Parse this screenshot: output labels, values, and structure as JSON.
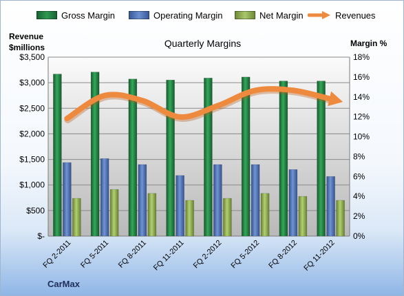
{
  "chart_data": {
    "type": "bar",
    "title": "Quarterly Margins",
    "ylabel_left": "Revenue $millions",
    "ylabel_right": "Margin %",
    "categories": [
      "FQ 2-2011",
      "FQ 5-2011",
      "FQ 8-2011",
      "FQ 11-2011",
      "FQ 2-2012",
      "FQ 5-2012",
      "FQ 8-2012",
      "FQ 11-2012"
    ],
    "left_axis": {
      "ylim": [
        0,
        3500
      ],
      "ticks": [
        0,
        500,
        1000,
        1500,
        2000,
        2500,
        3000,
        3500
      ],
      "tick_labels": [
        "$-",
        "$500",
        "$1,000",
        "$1,500",
        "$2,000",
        "$2,500",
        "$3,000",
        "$3,500"
      ]
    },
    "right_axis": {
      "ylim": [
        0,
        18
      ],
      "ticks": [
        0,
        2,
        4,
        6,
        8,
        10,
        12,
        14,
        16,
        18
      ],
      "tick_labels": [
        "0%",
        "2%",
        "4%",
        "6%",
        "8%",
        "10%",
        "12%",
        "14%",
        "16%",
        "18%"
      ]
    },
    "series": [
      {
        "name": "Gross Margin",
        "type": "bar",
        "axis": "right",
        "color": "#1e7b3f",
        "values": [
          16.3,
          16.5,
          15.8,
          15.7,
          15.9,
          16.0,
          15.6,
          15.6
        ]
      },
      {
        "name": "Operating Margin",
        "type": "bar",
        "axis": "right",
        "color": "#4a6fb5",
        "values": [
          7.4,
          7.8,
          7.2,
          6.1,
          7.2,
          7.2,
          6.7,
          6.0
        ]
      },
      {
        "name": "Net Margin",
        "type": "bar",
        "axis": "right",
        "color": "#8fad4c",
        "values": [
          3.8,
          4.7,
          4.3,
          3.6,
          3.8,
          4.3,
          4.0,
          3.6
        ]
      },
      {
        "name": "Revenues",
        "type": "line",
        "axis": "left",
        "color": "#ee8a3e",
        "values": [
          2300,
          2750,
          2650,
          2330,
          2550,
          2850,
          2850,
          2680
        ]
      }
    ],
    "grid": true,
    "legend_position": "top"
  },
  "footer": {
    "company": "CarMax"
  }
}
